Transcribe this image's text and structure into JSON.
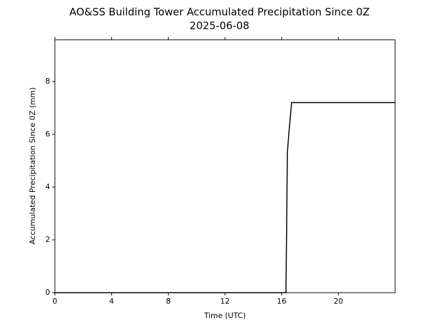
{
  "chart_data": {
    "type": "line",
    "title": "AO&SS Building Tower Accumulated Precipitation Since 0Z",
    "subtitle": "2025-06-08",
    "x_label": "Time (UTC)",
    "y_label": "Accumulated Precipitation Since 0Z (mm)",
    "series": [
      {
        "name": "Accumulated Precipitation",
        "color": "#000000",
        "x": [
          0,
          16.3,
          16.35,
          16.4,
          16.5,
          16.6,
          16.7,
          24
        ],
        "values": [
          0,
          0,
          2.5,
          5.3,
          6.0,
          6.6,
          7.2,
          7.2
        ]
      }
    ],
    "xlim": [
      0,
      24
    ],
    "xticks": [
      0,
      4,
      8,
      12,
      16,
      20
    ],
    "ylim": [
      0,
      9.58
    ],
    "yticks": [
      0,
      2,
      4,
      6,
      8
    ],
    "grid": false
  }
}
